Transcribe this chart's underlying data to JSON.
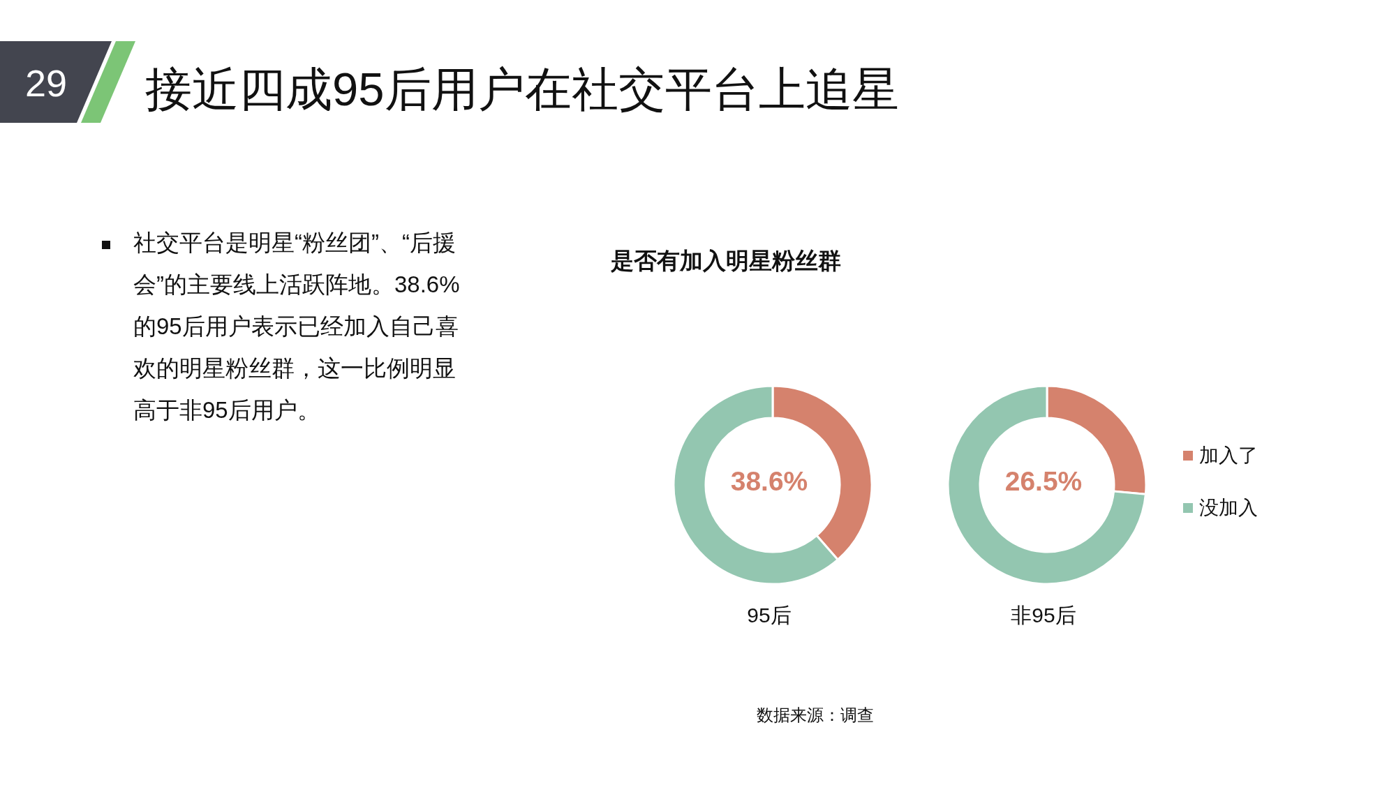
{
  "chart_data": [
    {
      "type": "other",
      "title": "接近四成95后用户在社交平台上追星",
      "annotations": [
        "29",
        "社交平台是明星“粉丝团”、“后援会”的主要线上活跃阵地。38.6%的95后用户表示已经加入自己喜欢的明星粉丝群，这一比例明显高于非95后用户。"
      ]
    },
    {
      "type": "donut",
      "title": "是否有加入明星粉丝群",
      "categories": [
        "加入了",
        "没加入"
      ],
      "colors": [
        "#d5826d",
        "#93c6b0"
      ],
      "series": [
        {
          "name": "95后",
          "values": [
            38.6,
            61.4
          ]
        },
        {
          "name": "非95后",
          "values": [
            26.5,
            73.5
          ]
        }
      ],
      "legend": "right",
      "annotations": [
        "38.6%",
        "26.5%",
        "数据来源：调查"
      ]
    }
  ]
}
